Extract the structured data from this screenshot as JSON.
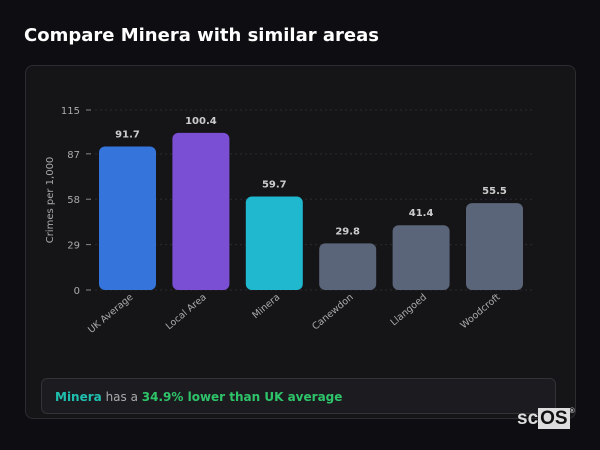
{
  "title": "Compare Minera with similar areas",
  "chart_data": {
    "type": "bar",
    "categories": [
      "UK Average",
      "Local Area",
      "Minera",
      "Canewdon",
      "Llangoed",
      "Woodcroft"
    ],
    "values": [
      91.7,
      100.4,
      59.7,
      29.8,
      41.4,
      55.5
    ],
    "value_labels": [
      "91.7",
      "100.4",
      "59.7",
      "29.8",
      "41.4",
      "55.5"
    ],
    "colors": [
      "#3474db",
      "#7b4fd3",
      "#1fb8cf",
      "#5b6579",
      "#5b6579",
      "#5b6579"
    ],
    "ylabel": "Crimes per 1,000",
    "yticks": [
      0,
      29,
      58,
      87,
      115
    ],
    "ylim": [
      0,
      115
    ],
    "grid": true
  },
  "summary": {
    "area": "Minera",
    "text": " has a ",
    "comparison": "34.9% lower than UK average",
    "area_color": "#1fc0b0",
    "comparison_color": "#2ec46a"
  },
  "logo": {
    "left": "sc",
    "right": "OS",
    "mark": "®"
  }
}
